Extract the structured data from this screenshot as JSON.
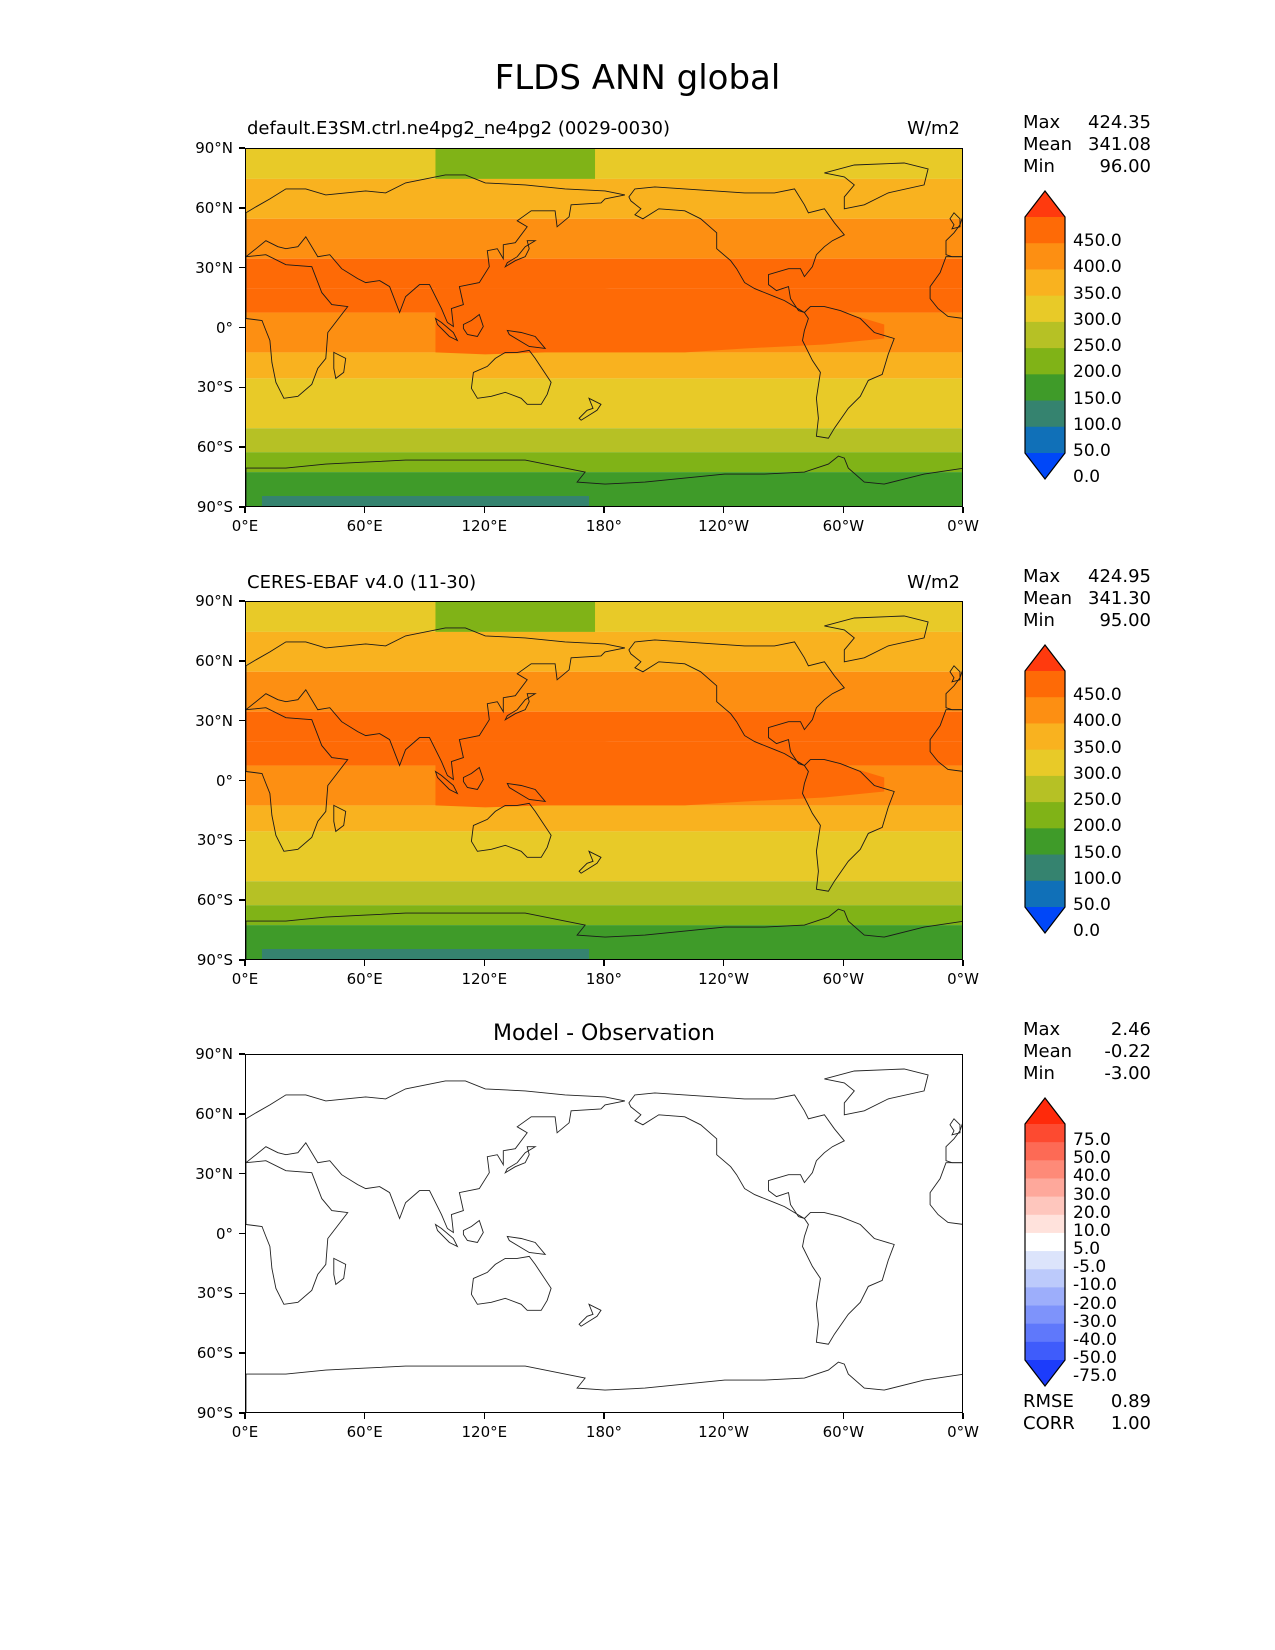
{
  "figure": {
    "title": "FLDS ANN global"
  },
  "axes": {
    "lat_labels": [
      "90°N",
      "60°N",
      "30°N",
      "0°",
      "30°S",
      "60°S",
      "90°S"
    ],
    "lon_labels": [
      "0°E",
      "60°E",
      "120°E",
      "180°",
      "120°W",
      "60°W",
      "0°W"
    ]
  },
  "panels": [
    {
      "name": "model",
      "title": "default.E3SM.ctrl.ne4pg2_ne4pg2 (0029-0030)",
      "units": "W/m2",
      "stats": {
        "max_label": "Max",
        "max": "424.35",
        "mean_label": "Mean",
        "mean": "341.08",
        "min_label": "Min",
        "min": "96.00"
      },
      "colorbar": {
        "labels": [
          "450.0",
          "400.0",
          "350.0",
          "300.0",
          "250.0",
          "200.0",
          "150.0",
          "100.0",
          "50.0",
          "0.0"
        ],
        "colors": [
          "#ff3a0e",
          "#fe6a06",
          "#fd8f12",
          "#f9b21f",
          "#e8ca28",
          "#b6c125",
          "#80b317",
          "#3f9b29",
          "#35836f",
          "#1070b8",
          "#0047f8"
        ]
      }
    },
    {
      "name": "obs",
      "title": "CERES-EBAF v4.0 (11-30)",
      "units": "W/m2",
      "stats": {
        "max_label": "Max",
        "max": "424.95",
        "mean_label": "Mean",
        "mean": "341.30",
        "min_label": "Min",
        "min": "95.00"
      },
      "colorbar": {
        "labels": [
          "450.0",
          "400.0",
          "350.0",
          "300.0",
          "250.0",
          "200.0",
          "150.0",
          "100.0",
          "50.0",
          "0.0"
        ],
        "colors": [
          "#ff3a0e",
          "#fe6a06",
          "#fd8f12",
          "#f9b21f",
          "#e8ca28",
          "#b6c125",
          "#80b317",
          "#3f9b29",
          "#35836f",
          "#1070b8",
          "#0047f8"
        ]
      }
    },
    {
      "name": "diff",
      "title": "Model - Observation",
      "units": "",
      "stats": {
        "max_label": "Max",
        "max": "2.46",
        "mean_label": "Mean",
        "mean": "-0.22",
        "min_label": "Min",
        "min": "-3.00"
      },
      "colorbar": {
        "labels": [
          "75.0",
          "50.0",
          "40.0",
          "30.0",
          "20.0",
          "10.0",
          "5.0",
          "-5.0",
          "-10.0",
          "-20.0",
          "-30.0",
          "-40.0",
          "-50.0",
          "-75.0"
        ],
        "colors": [
          "#ff2a0a",
          "#fd4a30",
          "#fd6a55",
          "#fe8a78",
          "#fea89b",
          "#fec6bd",
          "#ffe2dc",
          "#ffffff",
          "#dce4fb",
          "#bccafb",
          "#9daefb",
          "#7e93fb",
          "#5f78fb",
          "#3f5cfb",
          "#1c3cfb"
        ]
      },
      "extra": {
        "rmse_label": "RMSE",
        "rmse": "0.89",
        "corr_label": "CORR",
        "corr": "1.00"
      }
    }
  ],
  "field_bands": {
    "band_levels_top_to_bottom": [
      "250-300",
      "300-350",
      "350-400",
      "400-450",
      "400-450",
      "350-400",
      "300-350",
      "250-300",
      "200-250",
      "150-200",
      "100-150"
    ],
    "band_lat_edges": [
      90,
      75,
      55,
      35,
      20,
      8,
      -12,
      -25,
      -50,
      -62,
      -72,
      -90
    ]
  }
}
